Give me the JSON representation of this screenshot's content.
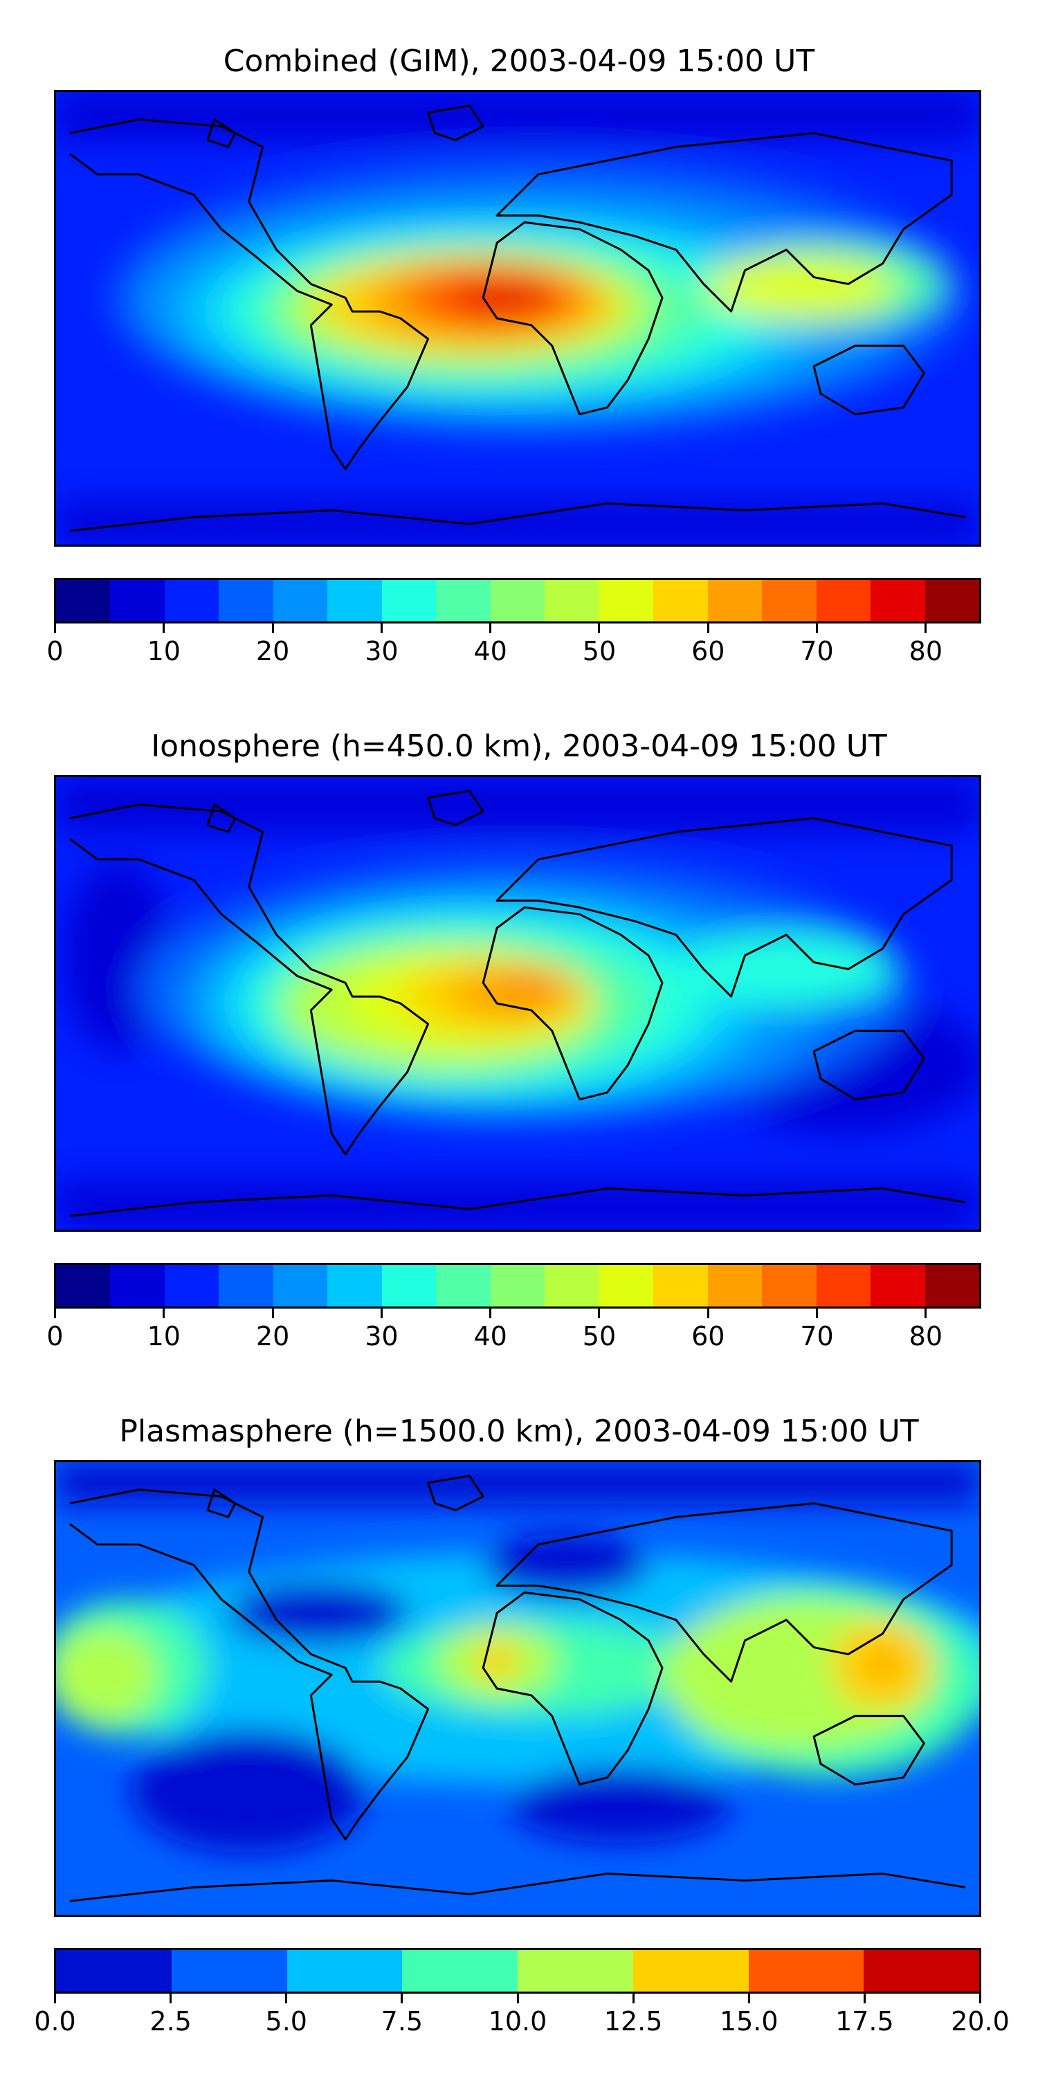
{
  "panels": [
    {
      "id": "combined",
      "title": "Combined (GIM), 2003-04-09 15:00 UT",
      "colorbar": {
        "colors": [
          "#00008f",
          "#0000d8",
          "#0020ff",
          "#0060ff",
          "#0090ff",
          "#00c8ff",
          "#20ffe0",
          "#50ffa8",
          "#88ff70",
          "#b8ff40",
          "#e0ff10",
          "#ffd400",
          "#ffa000",
          "#ff7000",
          "#ff3c00",
          "#e40000",
          "#960000"
        ],
        "tick_labels": [
          "0",
          "10",
          "20",
          "30",
          "40",
          "50",
          "60",
          "70",
          "80"
        ],
        "tick_values": [
          0,
          10,
          20,
          30,
          40,
          50,
          60,
          70,
          80
        ],
        "min": 0,
        "max": 85
      }
    },
    {
      "id": "ionosphere",
      "title": "Ionosphere  (h=450.0 km), 2003-04-09 15:00 UT",
      "colorbar": {
        "colors": [
          "#00008f",
          "#0000d8",
          "#0020ff",
          "#0060ff",
          "#0090ff",
          "#00c8ff",
          "#20ffe0",
          "#50ffa8",
          "#88ff70",
          "#b8ff40",
          "#e0ff10",
          "#ffd400",
          "#ffa000",
          "#ff7000",
          "#ff3c00",
          "#e40000",
          "#960000"
        ],
        "tick_labels": [
          "0",
          "10",
          "20",
          "30",
          "40",
          "50",
          "60",
          "70",
          "80"
        ],
        "tick_values": [
          0,
          10,
          20,
          30,
          40,
          50,
          60,
          70,
          80
        ],
        "min": 0,
        "max": 85
      }
    },
    {
      "id": "plasmasphere",
      "title": "Plasmasphere (h=1500.0 km), 2003-04-09 15:00 UT",
      "colorbar": {
        "colors": [
          "#0010d0",
          "#0060ff",
          "#00c0ff",
          "#40ffb0",
          "#b0ff50",
          "#ffd000",
          "#ff5800",
          "#c80000"
        ],
        "tick_labels": [
          "0.0",
          "2.5",
          "5.0",
          "7.5",
          "10.0",
          "12.5",
          "15.0",
          "17.5",
          "20.0"
        ],
        "tick_values": [
          0,
          2.5,
          5,
          7.5,
          10,
          12.5,
          15,
          17.5,
          20
        ],
        "min": 0,
        "max": 20
      }
    }
  ]
}
